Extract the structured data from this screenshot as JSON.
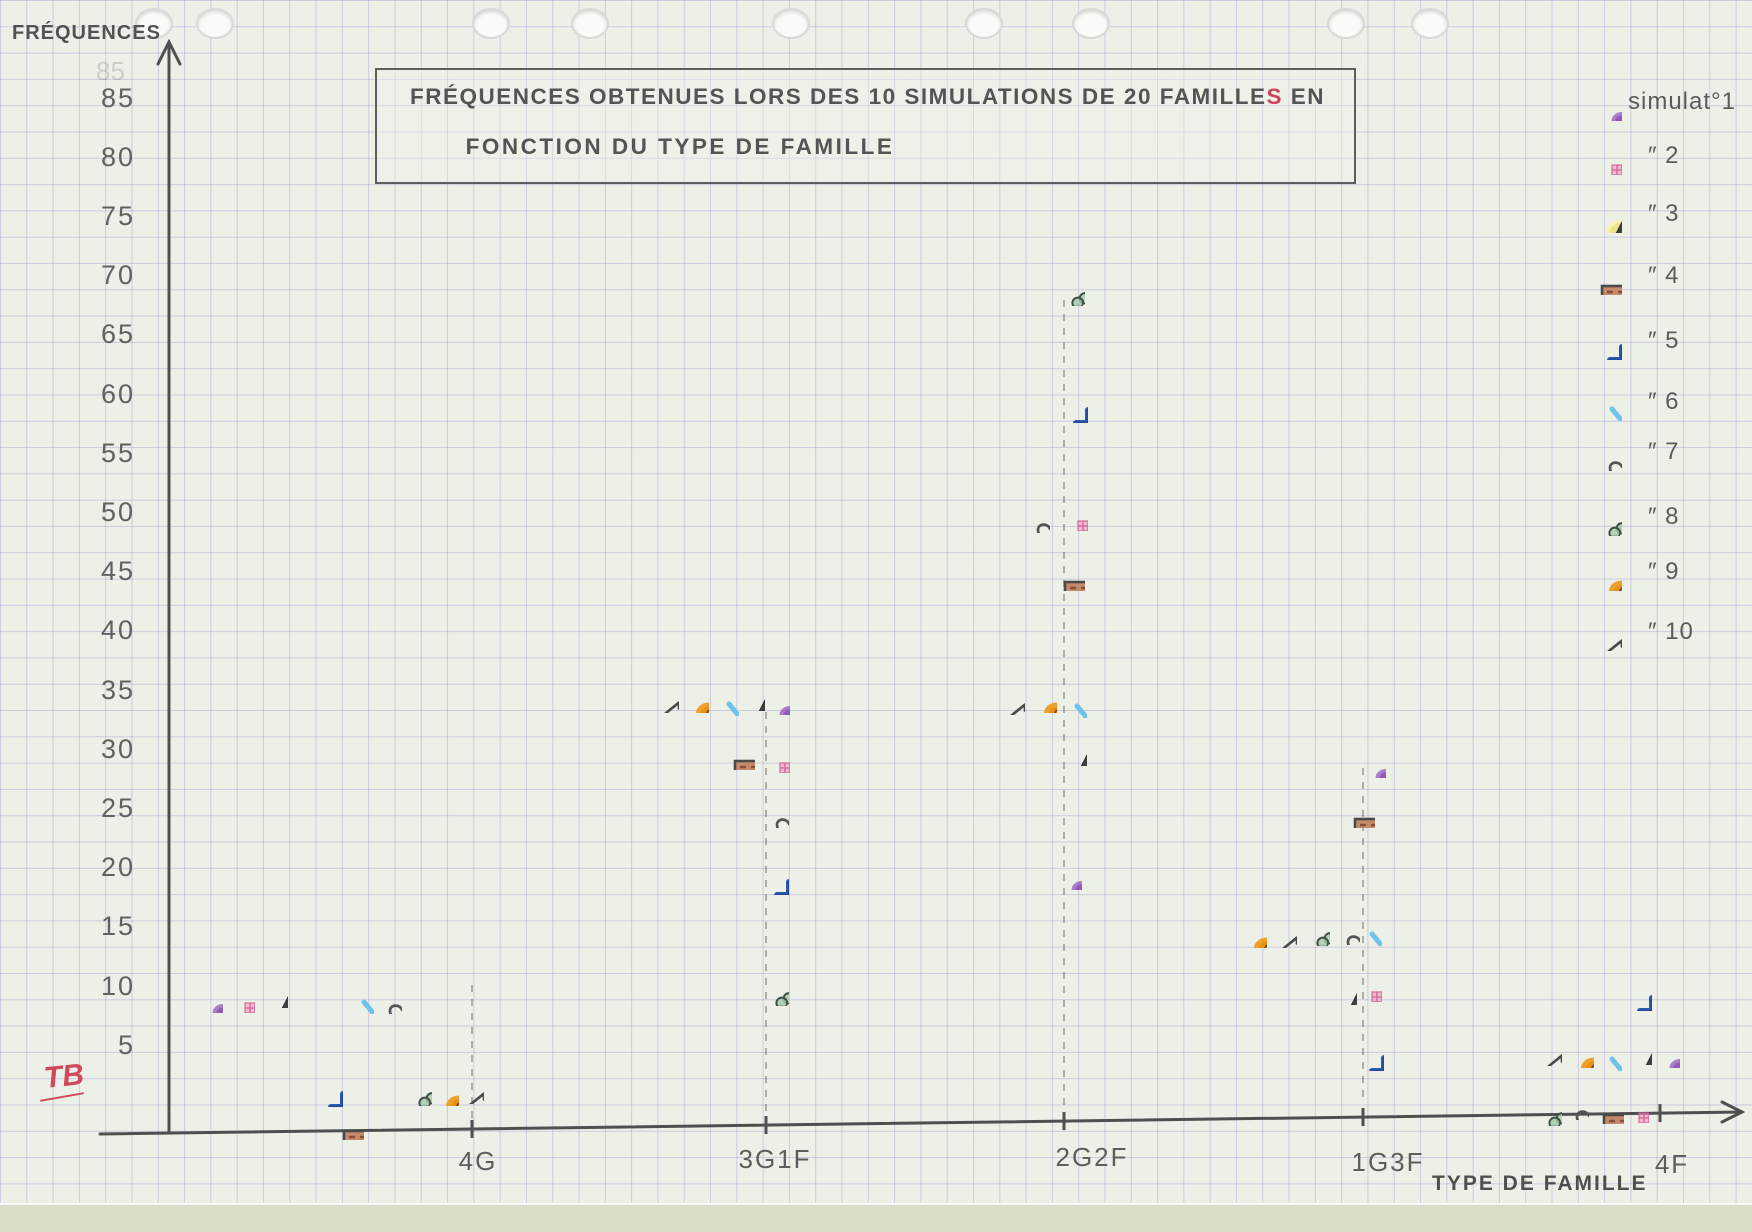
{
  "page": {
    "title_part1": "FRÉQUENCES OBTENUES LORS DES 10 SIMULATIONS DE 20 FAMILLE",
    "title_red": "S",
    "title_part2": " EN",
    "title_line2": "FONCTION DU TYPE DE FAMILLE",
    "ghost_label": "85",
    "corner_mark": "TB"
  },
  "chart_data": {
    "type": "scatter",
    "title": "FRÉQUENCES OBTENUES LORS DES 10 SIMULATIONS DE 20 FAMILLES EN FONCTION DU TYPE DE FAMILLE",
    "ylabel": "FRÉQUENCES",
    "xlabel": "TYPE DE FAMILLE",
    "categories": [
      "4G",
      "3G1F",
      "2G2F",
      "1G3F",
      "4F"
    ],
    "y_ticks": [
      85,
      80,
      75,
      70,
      65,
      60,
      55,
      50,
      45,
      40,
      35,
      30,
      25,
      20,
      15,
      10,
      5
    ],
    "ylim": [
      0,
      90
    ],
    "grid": true,
    "legend_position": "right",
    "legend_title": "simulat°1",
    "series": [
      {
        "name": "simulation 1",
        "legend_label": "simulat°1",
        "symbol": "purple-dot",
        "color": "#9a5fc0",
        "values": [
          10,
          35,
          20,
          30,
          5
        ]
      },
      {
        "name": "simulation 2",
        "legend_label": "″ 2",
        "symbol": "pink-square",
        "color": "#d6619a",
        "values": [
          10,
          30,
          50,
          10,
          0
        ]
      },
      {
        "name": "simulation 3",
        "legend_label": "″ 3",
        "symbol": "dark-triangle",
        "color": "#3f3f3f",
        "values": [
          10,
          35,
          30,
          10,
          5
        ]
      },
      {
        "name": "simulation 4",
        "legend_label": "″ 4",
        "symbol": "brown-rect",
        "color": "#b5765a",
        "values": [
          0,
          30,
          45,
          25,
          0
        ]
      },
      {
        "name": "simulation 5",
        "legend_label": "″ 5",
        "symbol": "blue-plus",
        "color": "#2b57b0",
        "values": [
          5,
          20,
          60,
          5,
          10
        ]
      },
      {
        "name": "simulation 6",
        "legend_label": "″ 6",
        "symbol": "lightblue-x",
        "color": "#6fc2e8",
        "values": [
          10,
          35,
          35,
          15,
          5
        ]
      },
      {
        "name": "simulation 7",
        "legend_label": "″ 7",
        "symbol": "heart",
        "color": "#5a5a5a",
        "values": [
          10,
          25,
          50,
          15,
          0
        ]
      },
      {
        "name": "simulation 8",
        "legend_label": "″ 8",
        "symbol": "green-flower",
        "color": "#4e7a58",
        "values": [
          5,
          10,
          70,
          15,
          0
        ]
      },
      {
        "name": "simulation 9",
        "legend_label": "″ 9",
        "symbol": "orange-blob",
        "color": "#ee9418",
        "values": [
          5,
          35,
          35,
          15,
          5
        ]
      },
      {
        "name": "simulation 10",
        "legend_label": "″ 10",
        "symbol": "arrow-left",
        "color": "#4a4a4a",
        "values": [
          5,
          35,
          35,
          15,
          5
        ]
      }
    ]
  }
}
